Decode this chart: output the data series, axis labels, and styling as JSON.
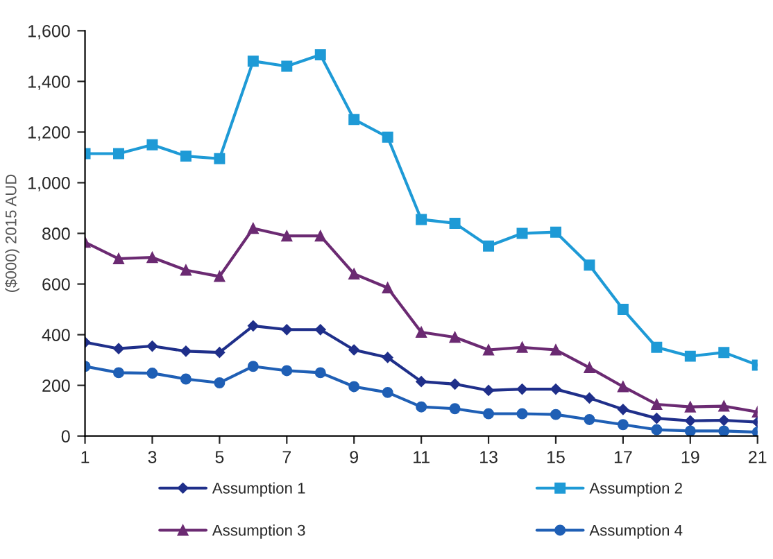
{
  "chart_data": {
    "type": "line",
    "ylabel": "($000) 2015 AUD",
    "x": [
      1,
      2,
      3,
      4,
      5,
      6,
      7,
      8,
      9,
      10,
      11,
      12,
      13,
      14,
      15,
      16,
      17,
      18,
      19,
      20,
      21
    ],
    "xlim": [
      1,
      21
    ],
    "xticks": [
      1,
      3,
      5,
      7,
      9,
      11,
      13,
      15,
      17,
      19,
      21
    ],
    "ylim": [
      0,
      1600
    ],
    "yticks": [
      0,
      200,
      400,
      600,
      800,
      {
        "value": 1000,
        "label": "1,000"
      },
      {
        "value": 1200,
        "label": "1,200"
      },
      {
        "value": 1400,
        "label": "1,400"
      },
      {
        "value": 1600,
        "label": "1,600"
      }
    ],
    "grid": false,
    "legend": "bottom",
    "line_style": "solid",
    "series": [
      {
        "name": "Assumption 1",
        "color": "#1f2f8a",
        "marker": "diamond",
        "values": [
          370,
          345,
          355,
          335,
          330,
          435,
          420,
          420,
          340,
          310,
          215,
          205,
          180,
          185,
          185,
          150,
          105,
          70,
          60,
          62,
          55
        ]
      },
      {
        "name": "Assumption 2",
        "color": "#1e9ad6",
        "marker": "square",
        "values": [
          1115,
          1115,
          1150,
          1105,
          1095,
          1480,
          1460,
          1505,
          1250,
          1180,
          855,
          840,
          750,
          800,
          805,
          675,
          500,
          350,
          315,
          330,
          280
        ]
      },
      {
        "name": "Assumption 3",
        "color": "#6b2a72",
        "marker": "triangle",
        "values": [
          765,
          700,
          705,
          655,
          630,
          820,
          790,
          790,
          640,
          585,
          410,
          390,
          340,
          350,
          340,
          270,
          195,
          125,
          115,
          118,
          95
        ]
      },
      {
        "name": "Assumption 4",
        "color": "#1f5fb5",
        "marker": "circle",
        "values": [
          275,
          250,
          248,
          225,
          210,
          275,
          258,
          250,
          195,
          172,
          115,
          108,
          88,
          88,
          85,
          65,
          45,
          25,
          20,
          20,
          15
        ]
      }
    ]
  }
}
